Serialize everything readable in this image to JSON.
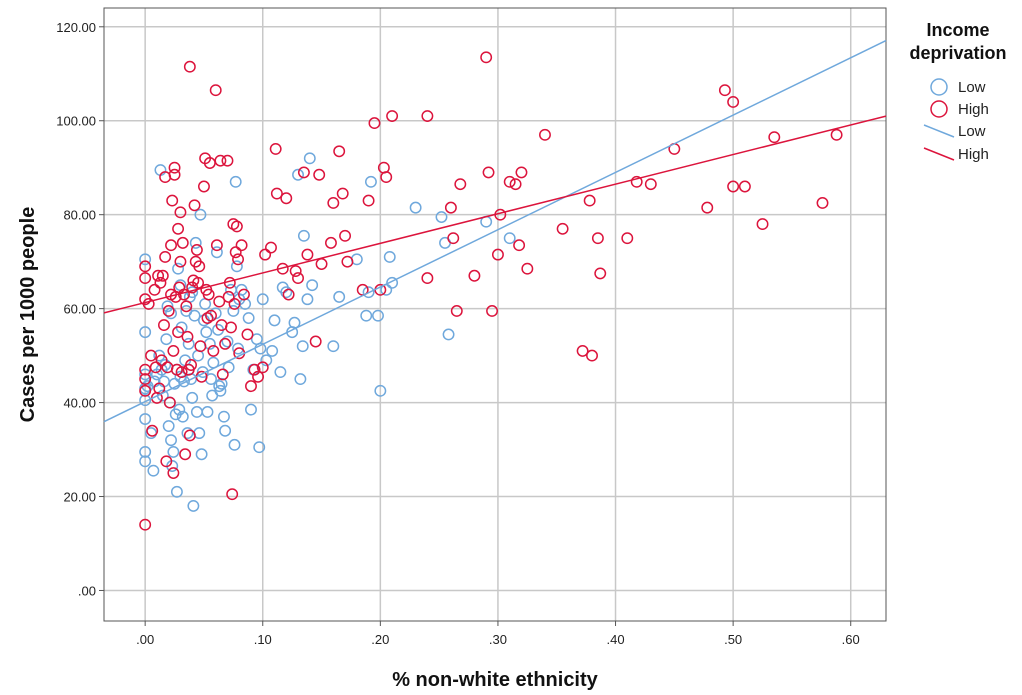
{
  "chart_data": {
    "type": "scatter",
    "xlabel": "% non-white ethnicity",
    "ylabel": "Cases per 1000 people",
    "xlim": [
      -0.035,
      0.63
    ],
    "ylim": [
      -6.5,
      124
    ],
    "x_ticks": [
      0,
      0.1,
      0.2,
      0.3,
      0.4,
      0.5,
      0.6
    ],
    "x_tick_labels": [
      ".00",
      ".10",
      ".20",
      ".30",
      ".40",
      ".50",
      ".60"
    ],
    "y_ticks": [
      0,
      20,
      40,
      60,
      80,
      100,
      120
    ],
    "y_tick_labels": [
      ".00",
      "20.00",
      "40.00",
      "60.00",
      "80.00",
      "100.00",
      "120.00"
    ],
    "grid": true,
    "legend": {
      "title_line1": "Income",
      "title_line2": "deprivation",
      "placement": "right",
      "entries": [
        {
          "label": "Low",
          "kind": "marker",
          "series": 0
        },
        {
          "label": "High",
          "kind": "marker",
          "series": 1
        },
        {
          "label": "Low",
          "kind": "line",
          "series": 0
        },
        {
          "label": "High",
          "kind": "line",
          "series": 1
        }
      ]
    },
    "series": [
      {
        "name": "Low",
        "color": "#6fa8dc",
        "marker": "open-circle",
        "fit_line": {
          "slope": 122.0,
          "intercept": 40.2
        },
        "points": [
          [
            0.0,
            70.5
          ],
          [
            0.0,
            55.0
          ],
          [
            0.0,
            46.0
          ],
          [
            0.0,
            40.5
          ],
          [
            0.0,
            36.5
          ],
          [
            0.0,
            29.5
          ],
          [
            0.0,
            27.5
          ],
          [
            0.0,
            43.0
          ],
          [
            0.002,
            43.5
          ],
          [
            0.005,
            33.5
          ],
          [
            0.007,
            25.5
          ],
          [
            0.008,
            44.5
          ],
          [
            0.01,
            46.0
          ],
          [
            0.012,
            50.0
          ],
          [
            0.013,
            89.5
          ],
          [
            0.014,
            47.0
          ],
          [
            0.015,
            41.5
          ],
          [
            0.016,
            44.5
          ],
          [
            0.017,
            48.0
          ],
          [
            0.018,
            53.5
          ],
          [
            0.019,
            60.5
          ],
          [
            0.02,
            35.0
          ],
          [
            0.021,
            40.0
          ],
          [
            0.022,
            59.0
          ],
          [
            0.022,
            32.0
          ],
          [
            0.023,
            26.5
          ],
          [
            0.024,
            29.5
          ],
          [
            0.025,
            44.0
          ],
          [
            0.026,
            37.5
          ],
          [
            0.027,
            21.0
          ],
          [
            0.027,
            47.0
          ],
          [
            0.028,
            68.5
          ],
          [
            0.029,
            38.5
          ],
          [
            0.03,
            65.0
          ],
          [
            0.03,
            45.5
          ],
          [
            0.031,
            56.0
          ],
          [
            0.032,
            37.0
          ],
          [
            0.033,
            44.5
          ],
          [
            0.034,
            49.0
          ],
          [
            0.035,
            59.5
          ],
          [
            0.036,
            33.5
          ],
          [
            0.037,
            52.5
          ],
          [
            0.037,
            47.0
          ],
          [
            0.038,
            62.5
          ],
          [
            0.039,
            45.0
          ],
          [
            0.04,
            63.5
          ],
          [
            0.04,
            41.0
          ],
          [
            0.041,
            18.0
          ],
          [
            0.042,
            58.5
          ],
          [
            0.043,
            74.0
          ],
          [
            0.044,
            38.0
          ],
          [
            0.045,
            50.0
          ],
          [
            0.046,
            33.5
          ],
          [
            0.047,
            80.0
          ],
          [
            0.048,
            29.0
          ],
          [
            0.049,
            46.5
          ],
          [
            0.05,
            57.5
          ],
          [
            0.051,
            61.0
          ],
          [
            0.052,
            55.0
          ],
          [
            0.053,
            38.0
          ],
          [
            0.055,
            52.5
          ],
          [
            0.056,
            45.0
          ],
          [
            0.057,
            41.5
          ],
          [
            0.058,
            48.5
          ],
          [
            0.06,
            59.0
          ],
          [
            0.061,
            72.0
          ],
          [
            0.062,
            55.5
          ],
          [
            0.063,
            43.5
          ],
          [
            0.064,
            42.5
          ],
          [
            0.065,
            44.0
          ],
          [
            0.067,
            37.0
          ],
          [
            0.068,
            34.0
          ],
          [
            0.07,
            53.0
          ],
          [
            0.071,
            47.5
          ],
          [
            0.073,
            64.0
          ],
          [
            0.075,
            59.5
          ],
          [
            0.076,
            31.0
          ],
          [
            0.077,
            87.0
          ],
          [
            0.078,
            69.0
          ],
          [
            0.079,
            51.5
          ],
          [
            0.08,
            62.0
          ],
          [
            0.082,
            64.0
          ],
          [
            0.085,
            61.0
          ],
          [
            0.088,
            58.0
          ],
          [
            0.09,
            38.5
          ],
          [
            0.092,
            47.0
          ],
          [
            0.095,
            53.5
          ],
          [
            0.097,
            30.5
          ],
          [
            0.098,
            51.5
          ],
          [
            0.1,
            62.0
          ],
          [
            0.103,
            49.0
          ],
          [
            0.108,
            51.0
          ],
          [
            0.11,
            57.5
          ],
          [
            0.115,
            46.5
          ],
          [
            0.117,
            64.5
          ],
          [
            0.12,
            63.5
          ],
          [
            0.125,
            55.0
          ],
          [
            0.127,
            57.0
          ],
          [
            0.13,
            88.5
          ],
          [
            0.132,
            45.0
          ],
          [
            0.134,
            52.0
          ],
          [
            0.135,
            75.5
          ],
          [
            0.138,
            62.0
          ],
          [
            0.14,
            92.0
          ],
          [
            0.142,
            65.0
          ],
          [
            0.16,
            52.0
          ],
          [
            0.165,
            62.5
          ],
          [
            0.18,
            70.5
          ],
          [
            0.188,
            58.5
          ],
          [
            0.19,
            63.5
          ],
          [
            0.192,
            87.0
          ],
          [
            0.198,
            58.5
          ],
          [
            0.2,
            42.5
          ],
          [
            0.205,
            64.0
          ],
          [
            0.208,
            71.0
          ],
          [
            0.21,
            65.5
          ],
          [
            0.23,
            81.5
          ],
          [
            0.252,
            79.5
          ],
          [
            0.255,
            74.0
          ],
          [
            0.258,
            54.5
          ],
          [
            0.29,
            78.5
          ],
          [
            0.31,
            75.0
          ]
        ]
      },
      {
        "name": "High",
        "color": "#dc143c",
        "marker": "open-circle",
        "fit_line": {
          "slope": 63.0,
          "intercept": 61.3
        },
        "points": [
          [
            0.0,
            69.0
          ],
          [
            0.0,
            66.5
          ],
          [
            0.0,
            62.0
          ],
          [
            0.0,
            47.0
          ],
          [
            0.0,
            45.0
          ],
          [
            0.0,
            42.5
          ],
          [
            0.0,
            14.0
          ],
          [
            0.003,
            61.0
          ],
          [
            0.005,
            50.0
          ],
          [
            0.006,
            34.0
          ],
          [
            0.008,
            64.0
          ],
          [
            0.009,
            47.5
          ],
          [
            0.01,
            41.0
          ],
          [
            0.011,
            67.0
          ],
          [
            0.012,
            43.0
          ],
          [
            0.013,
            65.5
          ],
          [
            0.014,
            49.0
          ],
          [
            0.015,
            67.0
          ],
          [
            0.016,
            56.5
          ],
          [
            0.017,
            88.0
          ],
          [
            0.017,
            71.0
          ],
          [
            0.018,
            27.5
          ],
          [
            0.019,
            47.5
          ],
          [
            0.02,
            59.5
          ],
          [
            0.021,
            40.0
          ],
          [
            0.022,
            73.5
          ],
          [
            0.022,
            63.0
          ],
          [
            0.023,
            83.0
          ],
          [
            0.024,
            25.0
          ],
          [
            0.024,
            51.0
          ],
          [
            0.025,
            90.0
          ],
          [
            0.025,
            88.5
          ],
          [
            0.026,
            62.5
          ],
          [
            0.027,
            47.0
          ],
          [
            0.028,
            55.0
          ],
          [
            0.028,
            77.0
          ],
          [
            0.029,
            64.5
          ],
          [
            0.03,
            80.5
          ],
          [
            0.03,
            70.0
          ],
          [
            0.031,
            46.5
          ],
          [
            0.032,
            74.0
          ],
          [
            0.033,
            63.0
          ],
          [
            0.034,
            29.0
          ],
          [
            0.035,
            60.5
          ],
          [
            0.036,
            54.0
          ],
          [
            0.037,
            47.0
          ],
          [
            0.038,
            111.5
          ],
          [
            0.038,
            33.0
          ],
          [
            0.039,
            48.0
          ],
          [
            0.04,
            64.5
          ],
          [
            0.041,
            66.0
          ],
          [
            0.042,
            82.0
          ],
          [
            0.043,
            70.0
          ],
          [
            0.044,
            72.5
          ],
          [
            0.045,
            65.5
          ],
          [
            0.046,
            69.0
          ],
          [
            0.047,
            52.0
          ],
          [
            0.048,
            45.5
          ],
          [
            0.05,
            86.0
          ],
          [
            0.051,
            92.0
          ],
          [
            0.052,
            64.0
          ],
          [
            0.053,
            58.0
          ],
          [
            0.054,
            63.0
          ],
          [
            0.055,
            91.0
          ],
          [
            0.056,
            58.5
          ],
          [
            0.058,
            51.0
          ],
          [
            0.06,
            106.5
          ],
          [
            0.061,
            73.5
          ],
          [
            0.063,
            61.5
          ],
          [
            0.064,
            91.5
          ],
          [
            0.065,
            56.5
          ],
          [
            0.066,
            46.0
          ],
          [
            0.068,
            52.5
          ],
          [
            0.07,
            91.5
          ],
          [
            0.071,
            62.5
          ],
          [
            0.072,
            65.5
          ],
          [
            0.073,
            56.0
          ],
          [
            0.074,
            20.5
          ],
          [
            0.075,
            78.0
          ],
          [
            0.076,
            61.0
          ],
          [
            0.077,
            72.0
          ],
          [
            0.078,
            77.5
          ],
          [
            0.079,
            70.5
          ],
          [
            0.08,
            50.5
          ],
          [
            0.082,
            73.5
          ],
          [
            0.084,
            63.0
          ],
          [
            0.087,
            54.5
          ],
          [
            0.09,
            43.5
          ],
          [
            0.093,
            47.0
          ],
          [
            0.096,
            45.5
          ],
          [
            0.1,
            47.5
          ],
          [
            0.102,
            71.5
          ],
          [
            0.107,
            73.0
          ],
          [
            0.111,
            94.0
          ],
          [
            0.112,
            84.5
          ],
          [
            0.117,
            68.5
          ],
          [
            0.12,
            83.5
          ],
          [
            0.122,
            63.0
          ],
          [
            0.128,
            68.0
          ],
          [
            0.13,
            66.5
          ],
          [
            0.135,
            89.0
          ],
          [
            0.138,
            71.5
          ],
          [
            0.145,
            53.0
          ],
          [
            0.148,
            88.5
          ],
          [
            0.15,
            69.5
          ],
          [
            0.158,
            74.0
          ],
          [
            0.16,
            82.5
          ],
          [
            0.165,
            93.5
          ],
          [
            0.168,
            84.5
          ],
          [
            0.17,
            75.5
          ],
          [
            0.172,
            70.0
          ],
          [
            0.185,
            64.0
          ],
          [
            0.19,
            83.0
          ],
          [
            0.195,
            99.5
          ],
          [
            0.2,
            64.0
          ],
          [
            0.203,
            90.0
          ],
          [
            0.205,
            88.0
          ],
          [
            0.21,
            101.0
          ],
          [
            0.24,
            101.0
          ],
          [
            0.24,
            66.5
          ],
          [
            0.26,
            81.5
          ],
          [
            0.262,
            75.0
          ],
          [
            0.265,
            59.5
          ],
          [
            0.268,
            86.5
          ],
          [
            0.28,
            67.0
          ],
          [
            0.29,
            113.5
          ],
          [
            0.292,
            89.0
          ],
          [
            0.295,
            59.5
          ],
          [
            0.3,
            71.5
          ],
          [
            0.302,
            80.0
          ],
          [
            0.31,
            87.0
          ],
          [
            0.315,
            86.5
          ],
          [
            0.318,
            73.5
          ],
          [
            0.32,
            89.0
          ],
          [
            0.325,
            68.5
          ],
          [
            0.34,
            97.0
          ],
          [
            0.355,
            77.0
          ],
          [
            0.372,
            51.0
          ],
          [
            0.378,
            83.0
          ],
          [
            0.38,
            50.0
          ],
          [
            0.385,
            75.0
          ],
          [
            0.387,
            67.5
          ],
          [
            0.41,
            75.0
          ],
          [
            0.418,
            87.0
          ],
          [
            0.43,
            86.5
          ],
          [
            0.45,
            94.0
          ],
          [
            0.478,
            81.5
          ],
          [
            0.493,
            106.5
          ],
          [
            0.5,
            86.0
          ],
          [
            0.5,
            104.0
          ],
          [
            0.51,
            86.0
          ],
          [
            0.525,
            78.0
          ],
          [
            0.535,
            96.5
          ],
          [
            0.576,
            82.5
          ],
          [
            0.588,
            97.0
          ]
        ]
      }
    ]
  }
}
